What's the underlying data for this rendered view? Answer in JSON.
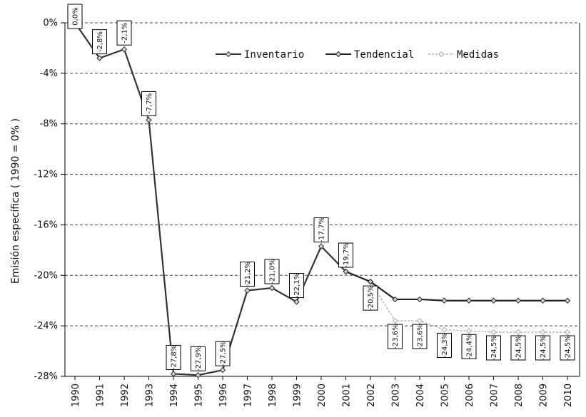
{
  "chart_data": {
    "type": "line",
    "xlabel": "",
    "ylabel": "Emisión específica ( 1990 = 0% )",
    "ylim": [
      -28,
      0
    ],
    "yticks": [
      0,
      -4,
      -8,
      -12,
      -16,
      -20,
      -24,
      -28
    ],
    "ytick_labels": [
      "0%",
      "-4%",
      "-8%",
      "-12%",
      "-16%",
      "-20%",
      "-24%",
      "-28%"
    ],
    "categories": [
      "1990",
      "1991",
      "1992",
      "1993",
      "1994",
      "1995",
      "1996",
      "1997",
      "1998",
      "1999",
      "2000",
      "2001",
      "2002",
      "2003",
      "2004",
      "2005",
      "2006",
      "2007",
      "2008",
      "2009",
      "2010"
    ],
    "grid": "horizontal dashed",
    "legend_position": "top-right",
    "series": [
      {
        "name": "Inventario",
        "color": "#333333",
        "marker": "diamond",
        "values": [
          0,
          -2.8,
          -2.1,
          -7.7,
          -27.8,
          -27.9,
          -27.5,
          -21.2,
          -21.0,
          -22.1,
          -17.7,
          -19.7,
          null,
          null,
          null,
          null,
          null,
          null,
          null,
          null,
          null
        ]
      },
      {
        "name": "Tendencial",
        "color": "#222222",
        "marker": "diamond",
        "values": [
          null,
          null,
          null,
          null,
          null,
          null,
          null,
          null,
          null,
          null,
          null,
          -19.7,
          -20.5,
          -21.9,
          -21.9,
          -22.0,
          -22.0,
          -22.0,
          -22.0,
          -22.0,
          -22.0
        ]
      },
      {
        "name": "Medidas",
        "color": "#b3b3b3",
        "marker": "diamond",
        "values": [
          null,
          null,
          null,
          null,
          null,
          null,
          null,
          null,
          null,
          null,
          null,
          -19.7,
          -20.5,
          -23.6,
          -23.6,
          -24.3,
          -24.4,
          -24.5,
          -24.5,
          -24.5,
          -24.5
        ]
      }
    ],
    "data_labels": [
      {
        "category": "1990",
        "value": 0,
        "text": "0,0%"
      },
      {
        "category": "1991",
        "value": -2.8,
        "text": "-2,8%"
      },
      {
        "category": "1992",
        "value": -2.1,
        "text": "-2,1%"
      },
      {
        "category": "1993",
        "value": -7.7,
        "text": "-7,7%"
      },
      {
        "category": "1994",
        "value": -27.8,
        "text": "-27,8%"
      },
      {
        "category": "1995",
        "value": -27.9,
        "text": "-27,9%"
      },
      {
        "category": "1996",
        "value": -27.5,
        "text": "-27,5%"
      },
      {
        "category": "1997",
        "value": -21.2,
        "text": "-21,2%"
      },
      {
        "category": "1998",
        "value": -21.0,
        "text": "-21,0%"
      },
      {
        "category": "1999",
        "value": -22.1,
        "text": "-22,1%"
      },
      {
        "category": "2000",
        "value": -17.7,
        "text": "-17,7%"
      },
      {
        "category": "2001",
        "value": -19.7,
        "text": "-19,7%"
      },
      {
        "category": "2002",
        "value": -20.5,
        "text": "-20,5%"
      },
      {
        "category": "2003",
        "value": -23.6,
        "text": "-23,6%"
      },
      {
        "category": "2004",
        "value": -23.6,
        "text": "-23,6%"
      },
      {
        "category": "2005",
        "value": -24.3,
        "text": "-24,3%"
      },
      {
        "category": "2006",
        "value": -24.4,
        "text": "-24,4%"
      },
      {
        "category": "2007",
        "value": -24.5,
        "text": "-24,5%"
      },
      {
        "category": "2008",
        "value": -24.5,
        "text": "-24,5%"
      },
      {
        "category": "2009",
        "value": -24.5,
        "text": "-24,5%"
      },
      {
        "category": "2010",
        "value": -24.5,
        "text": "-24,5%"
      }
    ]
  }
}
